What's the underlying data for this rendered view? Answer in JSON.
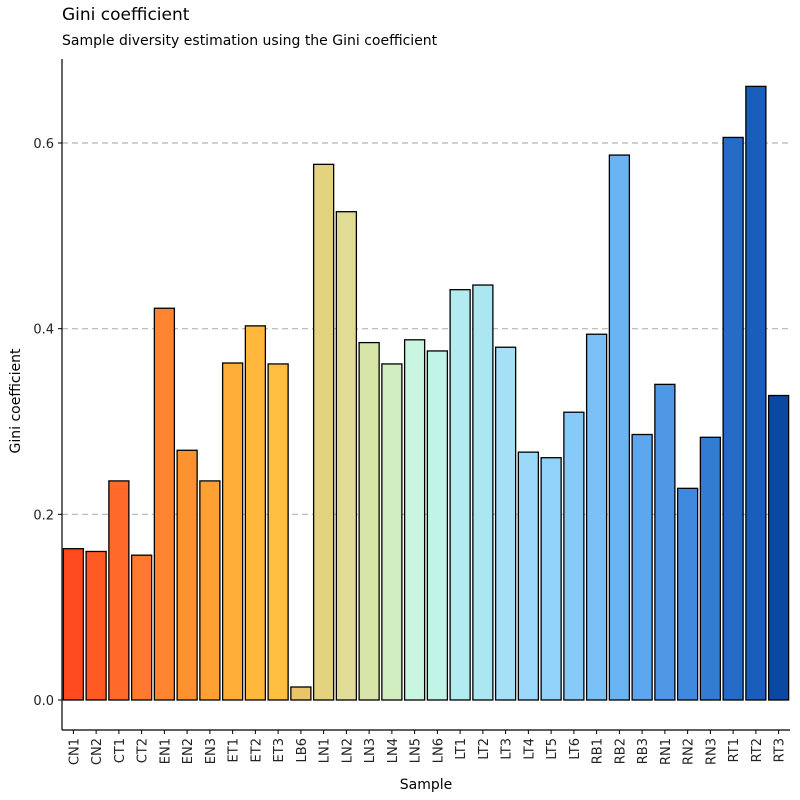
{
  "chart_data": {
    "type": "bar",
    "title": "Gini coefficient",
    "subtitle": "Sample diversity estimation using the Gini coefficient",
    "xlabel": "Sample",
    "ylabel": "Gini coefficient",
    "ylim": [
      -0.033,
      0.69
    ],
    "yticks": [
      0.0,
      0.2,
      0.4,
      0.6
    ],
    "ytick_labels": [
      "0.0",
      "0.2",
      "0.4",
      "0.6"
    ],
    "grid": "horizontal dashed at 0.2, 0.4, 0.6",
    "categories": [
      "CN1",
      "CN2",
      "CT1",
      "CT2",
      "EN1",
      "EN2",
      "EN3",
      "ET1",
      "ET2",
      "ET3",
      "LB6",
      "LN1",
      "LN2",
      "LN3",
      "LN4",
      "LN5",
      "LN6",
      "LT1",
      "LT2",
      "LT3",
      "LT4",
      "LT5",
      "LT6",
      "RB1",
      "RB2",
      "RB3",
      "RN1",
      "RN2",
      "RN3",
      "RT1",
      "RT2",
      "RT3"
    ],
    "values": [
      0.163,
      0.16,
      0.236,
      0.156,
      0.422,
      0.269,
      0.236,
      0.363,
      0.403,
      0.362,
      0.014,
      0.577,
      0.526,
      0.385,
      0.362,
      0.388,
      0.376,
      0.442,
      0.447,
      0.38,
      0.267,
      0.261,
      0.31,
      0.394,
      0.587,
      0.286,
      0.34,
      0.228,
      0.283,
      0.606,
      0.661,
      0.328
    ],
    "colors": [
      "#FF4A1F",
      "#FF5A24",
      "#FF6A2A",
      "#FF7A2E",
      "#FF8430",
      "#FF9230",
      "#FFA034",
      "#FFAE38",
      "#FFB83C",
      "#FFBE40",
      "#E9C46A",
      "#E3D27E",
      "#E0DC98",
      "#D7E6A8",
      "#D0EEC0",
      "#C8F6E0",
      "#BFF4E6",
      "#B2ECF0",
      "#ACE6F0",
      "#A6E0F6",
      "#9CD8FA",
      "#90D2FA",
      "#86CAFA",
      "#78C0F6",
      "#6AB4F4",
      "#5EA6EE",
      "#4E98E6",
      "#408ADE",
      "#327CD4",
      "#246CC8",
      "#1A5EBC",
      "#0A48A4"
    ]
  }
}
